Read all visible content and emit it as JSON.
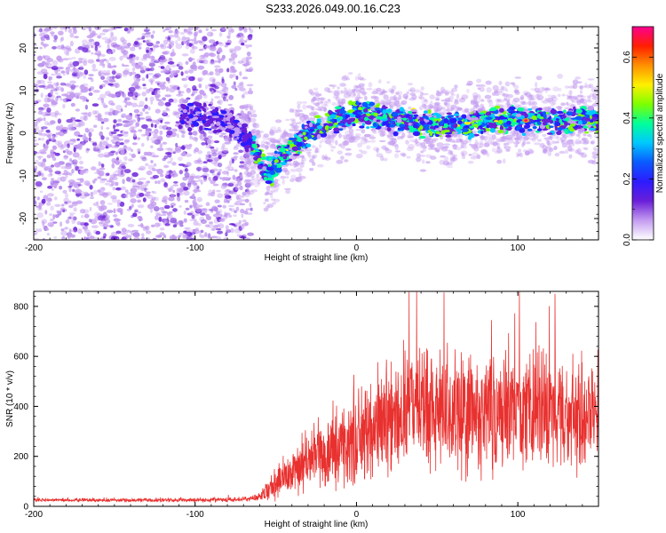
{
  "figure": {
    "title": "S233.2026.049.00.16.C23"
  },
  "chart_data": [
    {
      "type": "heatmap",
      "xlabel": "Height of straight line (km)",
      "ylabel": "Frequency (Hz)",
      "xlim": [
        -200,
        150
      ],
      "ylim": [
        -25,
        25
      ],
      "x_ticks": [
        -200,
        -100,
        0,
        100
      ],
      "x_tick_labels": [
        "-200",
        "-100",
        "0",
        "100"
      ],
      "y_ticks": [
        -20,
        -10,
        0,
        10,
        20
      ],
      "y_tick_labels": [
        "-20",
        "-10",
        "0",
        "10",
        "20"
      ],
      "colorbar": {
        "label": "Normalized spectral amplitude",
        "range": [
          0,
          0.7
        ],
        "ticks": [
          0,
          0.2,
          0.4,
          0.6
        ],
        "tick_labels": [
          "0.0",
          "0.2",
          "0.4",
          "0.6"
        ],
        "colors": [
          "#ffffff",
          "#c49cf0",
          "#6a1fd8",
          "#2d1bff",
          "#0a5aff",
          "#00c8ff",
          "#00ff9a",
          "#7dff00",
          "#fff000",
          "#ff9000",
          "#ff1e00",
          "#ff0090"
        ]
      },
      "signal_trace": {
        "x": [
          -110,
          -100,
          -90,
          -80,
          -72,
          -65,
          -60,
          -56,
          -52,
          -48,
          -44,
          -40,
          -35,
          -30,
          -25,
          -20,
          -15,
          -10,
          -5,
          0,
          10,
          20,
          30,
          40,
          50,
          60,
          70,
          80,
          90,
          100,
          110,
          120,
          130,
          140,
          150
        ],
        "y": [
          4,
          4,
          4,
          3,
          0,
          -3,
          -6,
          -9,
          -9,
          -6,
          -5,
          -3,
          -2,
          0,
          1,
          2,
          3,
          3,
          4,
          5,
          4,
          3,
          3,
          2,
          2,
          2,
          2,
          3,
          3,
          3,
          3,
          3,
          3,
          3,
          3
        ],
        "noise_floor_region": [
          -200,
          -65
        ],
        "peak_amplitude_x": 105,
        "peak_amplitude": 0.68
      }
    },
    {
      "type": "line",
      "xlabel": "Height of straight line (km)",
      "ylabel": "SNR (10 * v/v)",
      "xlim": [
        -200,
        150
      ],
      "ylim": [
        0,
        860
      ],
      "x_ticks": [
        -200,
        -100,
        0,
        100
      ],
      "x_tick_labels": [
        "-200",
        "-100",
        "0",
        "100"
      ],
      "y_ticks": [
        0,
        200,
        400,
        600,
        800
      ],
      "y_tick_labels": [
        "0",
        "200",
        "400",
        "600",
        "800"
      ],
      "line_color": "#e8312f",
      "series": [
        {
          "name": "SNR",
          "envelope_x": [
            -200,
            -150,
            -100,
            -70,
            -60,
            -55,
            -50,
            -45,
            -40,
            -35,
            -30,
            -20,
            -10,
            0,
            10,
            20,
            30,
            40,
            50,
            60,
            70,
            80,
            90,
            100,
            110,
            120,
            130,
            140,
            150
          ],
          "envelope_mean": [
            25,
            25,
            25,
            28,
            35,
            60,
            85,
            110,
            130,
            160,
            190,
            210,
            240,
            270,
            320,
            360,
            380,
            390,
            400,
            380,
            390,
            380,
            370,
            380,
            380,
            370,
            360,
            350,
            340
          ],
          "envelope_spread": [
            8,
            8,
            10,
            12,
            20,
            50,
            70,
            90,
            110,
            130,
            150,
            170,
            190,
            210,
            240,
            260,
            280,
            290,
            300,
            290,
            300,
            290,
            280,
            290,
            290,
            280,
            270,
            260,
            250
          ]
        }
      ]
    }
  ]
}
